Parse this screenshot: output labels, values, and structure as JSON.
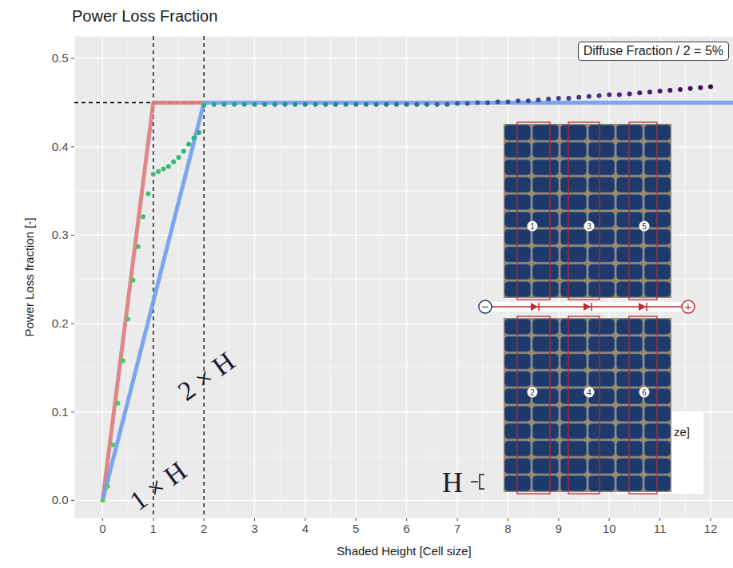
{
  "chart_data": {
    "type": "line",
    "title": "Power Loss Fraction",
    "x_label": "Shaded Height [Cell size]",
    "y_label": "Power Loss fraction [-]",
    "xlim": [
      -0.55,
      12.45
    ],
    "ylim": [
      -0.02,
      0.525
    ],
    "xticks": [
      0,
      1,
      2,
      3,
      4,
      5,
      6,
      7,
      8,
      9,
      10,
      11,
      12
    ],
    "yticks": [
      {
        "value": 0,
        "label": "0.0"
      },
      0.1,
      0.2,
      0.3,
      0.4,
      0.5
    ],
    "grid": true,
    "series": [
      {
        "type": "line",
        "color": "#e07b7b",
        "x": [
          0,
          1,
          2
        ],
        "values": [
          0,
          0.45,
          0.45
        ]
      },
      {
        "type": "line",
        "color": "#6f9ef0",
        "x": [
          0,
          2,
          12.5
        ],
        "values": [
          0,
          0.45,
          0.45
        ]
      },
      {
        "type": "scatter",
        "color": "viridis",
        "x": [
          0,
          0.1,
          0.2,
          0.3,
          0.4,
          0.5,
          0.6,
          0.7,
          0.8,
          0.9,
          1.0,
          1.1,
          1.2,
          1.3,
          1.4,
          1.5,
          1.6,
          1.7,
          1.8,
          1.9,
          2.0,
          2.2,
          2.4,
          2.6,
          2.8,
          3.0,
          3.2,
          3.4,
          3.6,
          3.8,
          4.0,
          4.2,
          4.4,
          4.6,
          4.8,
          5.0,
          5.2,
          5.4,
          5.6,
          5.8,
          6.0,
          6.2,
          6.4,
          6.6,
          6.8,
          7.0,
          7.2,
          7.4,
          7.6,
          7.8,
          8.0,
          8.2,
          8.4,
          8.6,
          8.8,
          9.0,
          9.2,
          9.4,
          9.6,
          9.8,
          10.0,
          10.2,
          10.4,
          10.6,
          10.8,
          11.0,
          11.2,
          11.4,
          11.6,
          11.8,
          12.0
        ],
        "values": [
          0,
          0.016,
          0.063,
          0.11,
          0.158,
          0.205,
          0.249,
          0.287,
          0.321,
          0.347,
          0.369,
          0.372,
          0.375,
          0.378,
          0.383,
          0.388,
          0.395,
          0.403,
          0.41,
          0.416,
          0.447,
          0.448,
          0.448,
          0.448,
          0.448,
          0.448,
          0.448,
          0.448,
          0.448,
          0.448,
          0.448,
          0.448,
          0.448,
          0.448,
          0.448,
          0.448,
          0.448,
          0.448,
          0.448,
          0.448,
          0.448,
          0.448,
          0.448,
          0.448,
          0.448,
          0.449,
          0.449,
          0.45,
          0.45,
          0.451,
          0.451,
          0.452,
          0.452,
          0.453,
          0.454,
          0.455,
          0.455,
          0.456,
          0.457,
          0.458,
          0.459,
          0.459,
          0.46,
          0.461,
          0.462,
          0.463,
          0.464,
          0.465,
          0.466,
          0.467,
          0.468
        ]
      }
    ],
    "reference_lines": {
      "vertical": [
        1,
        2
      ],
      "horizontal": [
        {
          "y": 0.45,
          "x_end": 2
        }
      ]
    },
    "annotations": [
      {
        "text": "1 × H",
        "x": 1.1,
        "y": 0.016
      },
      {
        "text": "2 × H",
        "x": 2.05,
        "y": 0.14
      }
    ],
    "box_label": "Diffuse Fraction / 2 = 5%",
    "legend_fragment": "ze]",
    "inset": {
      "top_labels": [
        "1",
        "3",
        "5"
      ],
      "bottom_labels": [
        "2",
        "4",
        "6"
      ],
      "negative": "−",
      "positive": "+",
      "height_label": "H"
    }
  }
}
